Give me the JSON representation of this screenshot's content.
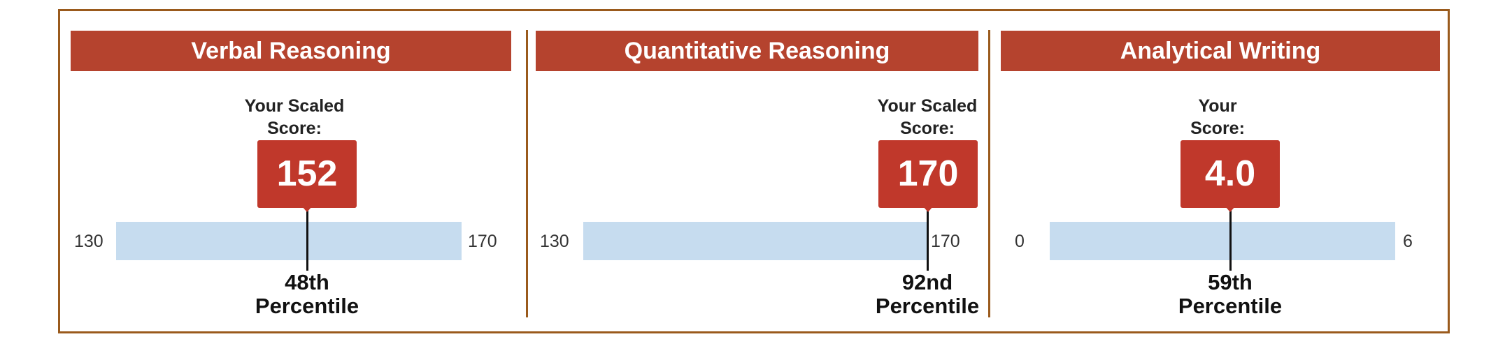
{
  "panels": [
    {
      "header": "Verbal Reasoning",
      "caption_line1": "Your Scaled",
      "caption_line2": "Score:",
      "score": "152",
      "min": "130",
      "max": "170",
      "percentile_line1": "48th",
      "percentile_line2": "Percentile",
      "position_fraction": 0.55
    },
    {
      "header": "Quantitative Reasoning",
      "caption_line1": "Your Scaled",
      "caption_line2": "Score:",
      "score": "170",
      "min": "130",
      "max": "170",
      "percentile_line1": "92nd",
      "percentile_line2": "Percentile",
      "position_fraction": 1.0
    },
    {
      "header": "Analytical Writing",
      "caption_line1": "Your",
      "caption_line2": "Score:",
      "score": "4.0",
      "min": "0",
      "max": "6",
      "percentile_line1": "59th",
      "percentile_line2": "Percentile",
      "position_fraction": 0.67
    }
  ],
  "colors": {
    "frame": "#9a5a1c",
    "header": "#b5432e",
    "score_box": "#c0382b",
    "bar": "#c6dcef"
  }
}
